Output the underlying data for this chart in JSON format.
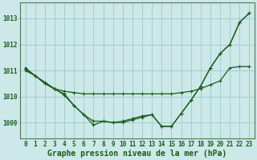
{
  "bg_color": "#cce8e8",
  "grid_color": "#99cccc",
  "line_color": "#1a5c1a",
  "xlabel": "Graphe pression niveau de la mer (hPa)",
  "xlabel_fontsize": 7.0,
  "tick_fontsize": 5.5,
  "ylim": [
    1008.4,
    1013.6
  ],
  "xlim": [
    -0.5,
    23.5
  ],
  "yticks": [
    1009,
    1010,
    1011,
    1012,
    1013
  ],
  "xticks": [
    0,
    1,
    2,
    3,
    4,
    5,
    6,
    7,
    8,
    9,
    10,
    11,
    12,
    13,
    14,
    15,
    16,
    17,
    18,
    19,
    20,
    21,
    22,
    23
  ],
  "series": [
    [
      1011.0,
      1010.8,
      1010.5,
      1010.3,
      1010.05,
      1009.65,
      1009.3,
      1008.9,
      1009.05,
      1009.0,
      1009.0,
      1009.1,
      1009.2,
      1009.3,
      1008.85,
      1008.85,
      1009.35,
      1009.85,
      1010.4,
      1011.1,
      1011.65,
      1012.0,
      1012.85,
      1013.2
    ],
    [
      1011.05,
      1010.8,
      1010.55,
      1010.3,
      1010.2,
      1010.15,
      1010.1,
      1010.1,
      1010.1,
      1010.1,
      1010.1,
      1010.1,
      1010.1,
      1010.1,
      1010.1,
      1010.1,
      1010.15,
      1010.2,
      1010.3,
      1010.45,
      1010.6,
      1011.1,
      1011.15,
      1011.15
    ],
    [
      1011.1,
      1010.8,
      1010.5,
      1010.28,
      1010.1,
      1009.65,
      1009.3,
      1009.05,
      1009.05,
      1009.0,
      1009.05,
      1009.15,
      1009.25,
      1009.3,
      1008.85,
      1008.85,
      1009.35,
      1009.85,
      1010.4,
      1011.1,
      1011.65,
      1012.0,
      1012.85,
      1013.2
    ]
  ]
}
